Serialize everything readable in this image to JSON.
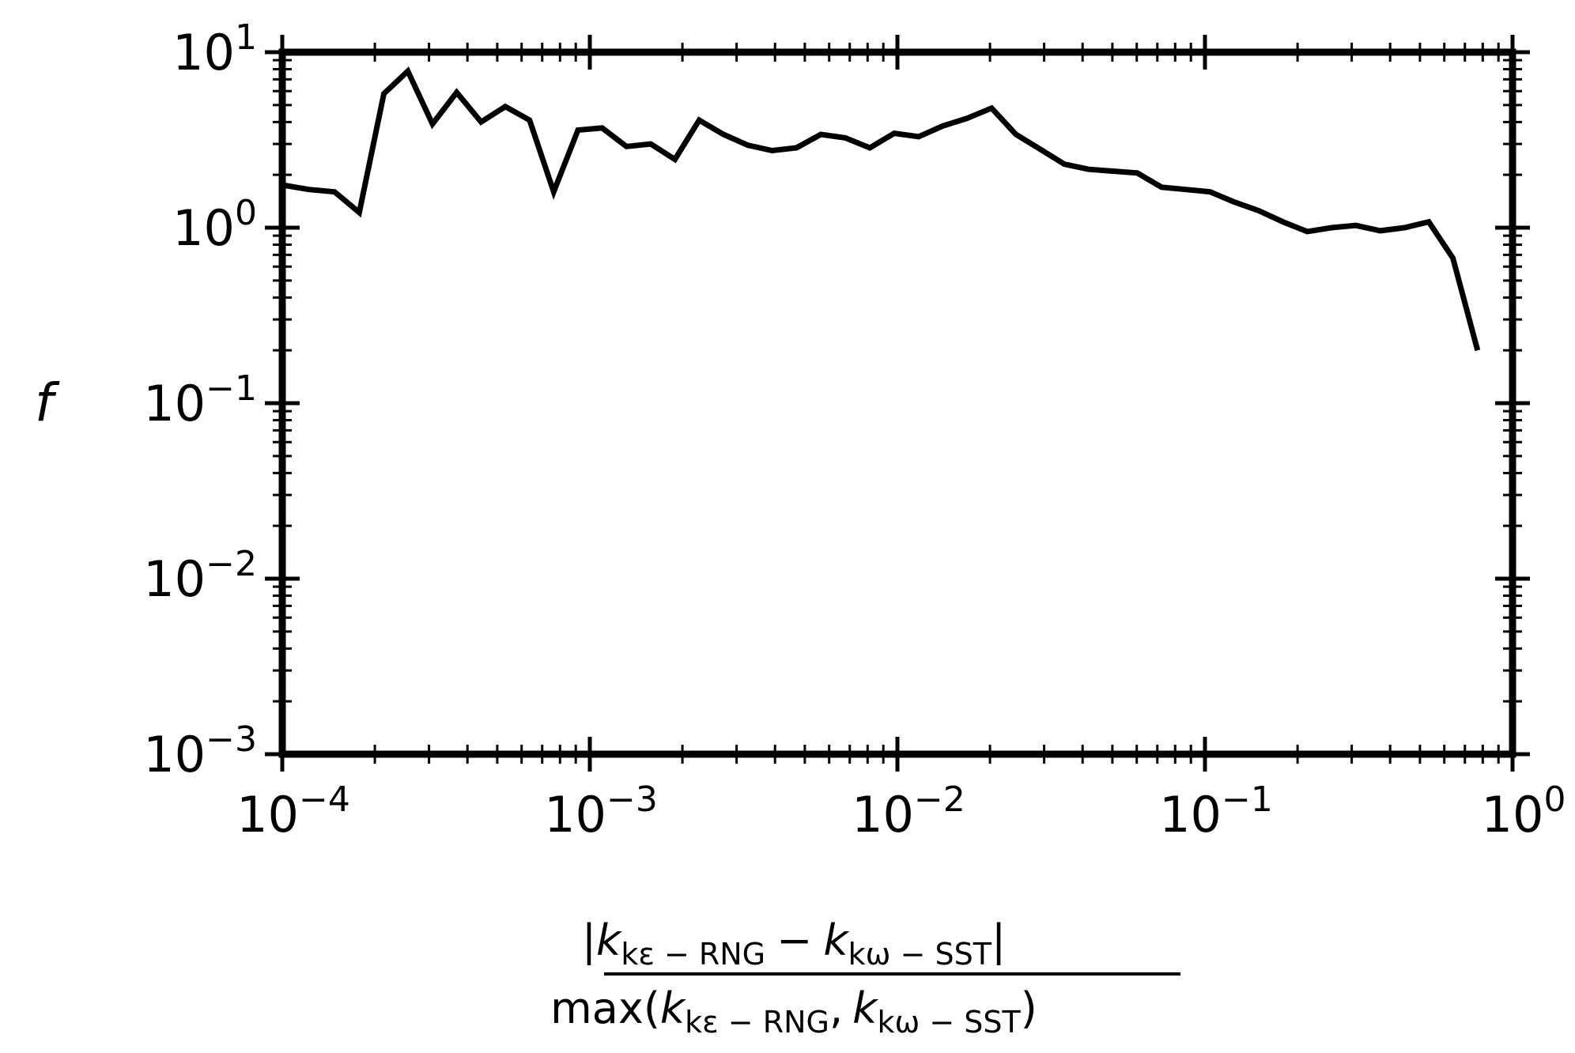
{
  "chart_data": {
    "type": "line",
    "title": "",
    "xscale": "log",
    "yscale": "log",
    "xlim": [
      0.0001,
      1
    ],
    "ylim": [
      0.001,
      10
    ],
    "grid": false,
    "ylabel": "f",
    "xlabel": {
      "numerator": {
        "bar": "|",
        "k": "k",
        "sub1": "kε − RNG",
        "minus": "−",
        "sub2": "kω − SST"
      },
      "denominator": {
        "prefix": "max(",
        "k": "k",
        "sub1": "kε − RNG",
        "comma": ",",
        "sub2": "kω − SST",
        "suffix": ")"
      }
    },
    "xticks": [
      {
        "value": 0.0001,
        "base": "10",
        "exp": "−4"
      },
      {
        "value": 0.001,
        "base": "10",
        "exp": "−3"
      },
      {
        "value": 0.01,
        "base": "10",
        "exp": "−2"
      },
      {
        "value": 0.1,
        "base": "10",
        "exp": "−1"
      },
      {
        "value": 1,
        "base": "10",
        "exp": "0"
      }
    ],
    "yticks": [
      {
        "value": 10,
        "base": "10",
        "exp": "1"
      },
      {
        "value": 1,
        "base": "10",
        "exp": "0"
      },
      {
        "value": 0.1,
        "base": "10",
        "exp": "−1"
      },
      {
        "value": 0.01,
        "base": "10",
        "exp": "−2"
      },
      {
        "value": 0.001,
        "base": "10",
        "exp": "−3"
      }
    ],
    "series": [
      {
        "color": "#000000",
        "x": [
          0.0001,
          0.000122,
          0.000148,
          0.000178,
          0.000214,
          0.000256,
          0.000308,
          0.000369,
          0.000443,
          0.000531,
          0.000637,
          0.000763,
          0.000915,
          0.001097,
          0.001315,
          0.001577,
          0.001891,
          0.002268,
          0.00272,
          0.003263,
          0.003914,
          0.004697,
          0.005638,
          0.006771,
          0.008133,
          0.009766,
          0.01172,
          0.01406,
          0.01687,
          0.02024,
          0.02428,
          0.02912,
          0.03493,
          0.04189,
          0.05024,
          0.06025,
          0.07226,
          0.08666,
          0.1039,
          0.1246,
          0.1495,
          0.1793,
          0.2151,
          0.258,
          0.3095,
          0.3712,
          0.4453,
          0.534,
          0.64,
          0.77
        ],
        "values": [
          1.75,
          1.65,
          1.6,
          1.22,
          5.8,
          7.8,
          3.9,
          5.9,
          4.0,
          4.9,
          4.1,
          1.6,
          3.6,
          3.7,
          2.9,
          3.0,
          2.45,
          4.1,
          3.4,
          2.95,
          2.75,
          2.85,
          3.4,
          3.25,
          2.85,
          3.45,
          3.3,
          3.8,
          4.2,
          4.8,
          3.4,
          2.8,
          2.3,
          2.15,
          2.1,
          2.05,
          1.7,
          1.65,
          1.6,
          1.4,
          1.25,
          1.08,
          0.95,
          1.0,
          1.03,
          0.96,
          1.0,
          1.08,
          0.67,
          0.2
        ]
      }
    ]
  }
}
